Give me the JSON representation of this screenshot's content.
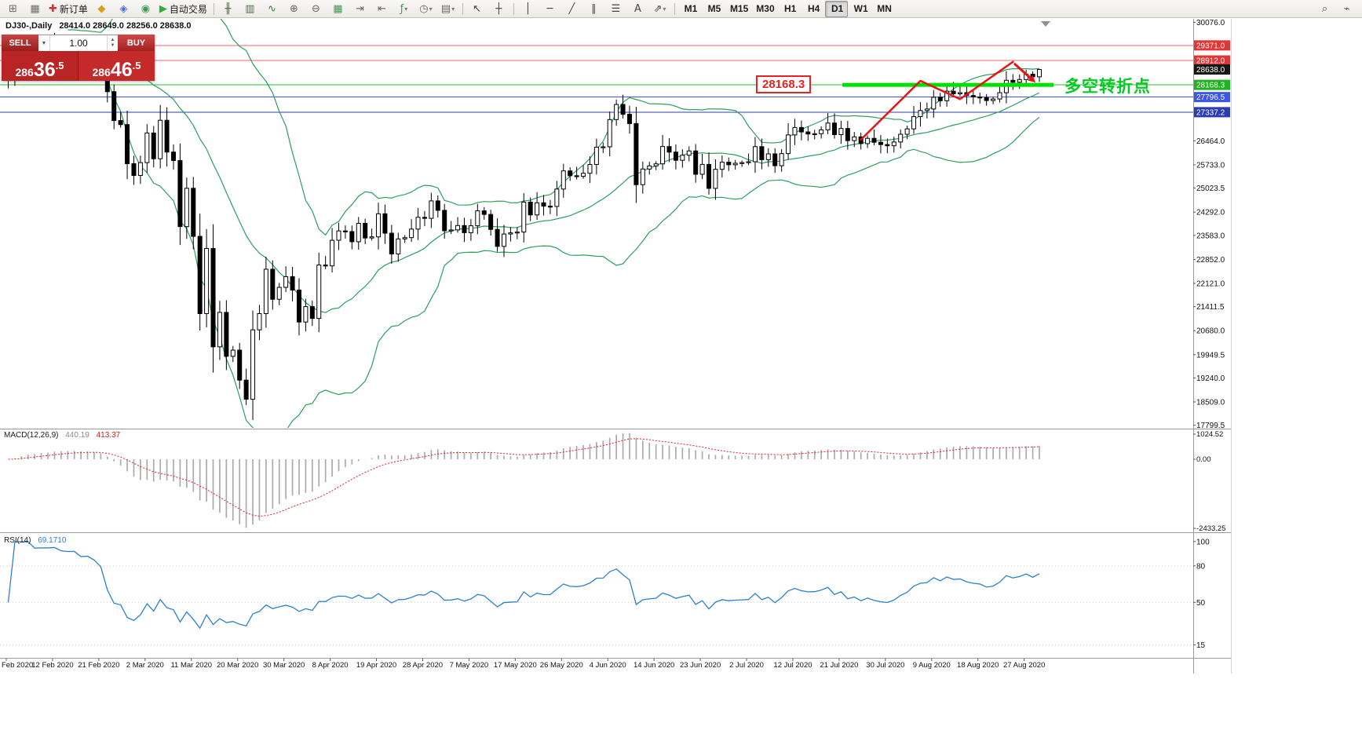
{
  "symbol_header": {
    "symbol": "DJ30-,Daily",
    "ohlc": "28414.0 28649.0 28256.0 28638.0"
  },
  "trade_panel": {
    "sell_label": "SELL",
    "buy_label": "BUY",
    "volume": "1.00",
    "sell_price": "28636.5",
    "buy_price": "28646.5",
    "dropdown_glyph": "▼",
    "spinner_up": "▲",
    "spinner_down": "▼"
  },
  "toolbar": {
    "items": [
      {
        "t": "btn",
        "name": "new-chart",
        "glyph": "⊞",
        "c": "#6b6b6b"
      },
      {
        "t": "btn",
        "name": "profiles",
        "glyph": "▦",
        "c": "#6b6b6b"
      },
      {
        "t": "btn",
        "name": "new-order",
        "glyph": "✚",
        "c": "#cc3333",
        "label": "新订单"
      },
      {
        "t": "btn",
        "name": "market-watch",
        "glyph": "◆",
        "c": "#d8a018"
      },
      {
        "t": "btn",
        "name": "data-window",
        "glyph": "◈",
        "c": "#4a6fd4"
      },
      {
        "t": "btn",
        "name": "navigator",
        "glyph": "◉",
        "c": "#3a9e4a"
      },
      {
        "t": "btn",
        "name": "auto-trading",
        "glyph": "▶",
        "c": "#2fae2f",
        "label": "自动交易"
      },
      {
        "t": "sep"
      },
      {
        "t": "btn",
        "name": "chart-bars",
        "glyph": "╫",
        "c": "#2f7e2f"
      },
      {
        "t": "btn",
        "name": "chart-candlesticks",
        "glyph": "▥",
        "c": "#2f7e2f"
      },
      {
        "t": "btn",
        "name": "chart-line",
        "glyph": "∿",
        "c": "#2f7e2f"
      },
      {
        "t": "btn",
        "name": "zoom-in",
        "glyph": "⊕",
        "c": "#666666"
      },
      {
        "t": "btn",
        "name": "zoom-out",
        "glyph": "⊖",
        "c": "#666666"
      },
      {
        "t": "btn",
        "name": "tile-windows",
        "glyph": "▦",
        "c": "#3a9e4a"
      },
      {
        "t": "btn",
        "name": "auto-scroll",
        "glyph": "⇥",
        "c": "#666666"
      },
      {
        "t": "btn",
        "name": "chart-shift",
        "glyph": "⇤",
        "c": "#666666"
      },
      {
        "t": "btn",
        "name": "indicators-list",
        "glyph": "ƒ",
        "c": "#2fae2f",
        "dd": true
      },
      {
        "t": "btn",
        "name": "periods-menu",
        "glyph": "◷",
        "c": "#666666",
        "dd": true
      },
      {
        "t": "btn",
        "name": "templates-menu",
        "glyph": "▤",
        "c": "#666666",
        "dd": true
      },
      {
        "t": "sep"
      },
      {
        "t": "btn",
        "name": "cursor-tool",
        "glyph": "↖",
        "c": "#444444"
      },
      {
        "t": "btn",
        "name": "crosshair-tool",
        "glyph": "┼",
        "c": "#444444"
      },
      {
        "t": "sep"
      },
      {
        "t": "btn",
        "name": "vertical-line-tool",
        "glyph": "│",
        "c": "#444444"
      },
      {
        "t": "btn",
        "name": "horizontal-line-tool",
        "glyph": "─",
        "c": "#444444"
      },
      {
        "t": "btn",
        "name": "trendline-tool",
        "glyph": "╱",
        "c": "#444444"
      },
      {
        "t": "btn",
        "name": "channel-tool",
        "glyph": "∥",
        "c": "#444444"
      },
      {
        "t": "btn",
        "name": "fibonacci-tool",
        "glyph": "☰",
        "c": "#444444"
      },
      {
        "t": "btn",
        "name": "text-tool",
        "glyph": "A",
        "c": "#444444"
      },
      {
        "t": "btn",
        "name": "arrows-tool",
        "glyph": "⇗",
        "c": "#444444",
        "dd": true
      },
      {
        "t": "sep"
      },
      {
        "t": "tf",
        "name": "tf-m1",
        "label": "M1"
      },
      {
        "t": "tf",
        "name": "tf-m5",
        "label": "M5"
      },
      {
        "t": "tf",
        "name": "tf-m15",
        "label": "M15"
      },
      {
        "t": "tf",
        "name": "tf-m30",
        "label": "M30"
      },
      {
        "t": "tf",
        "name": "tf-h1",
        "label": "H1"
      },
      {
        "t": "tf",
        "name": "tf-h4",
        "label": "H4"
      },
      {
        "t": "tf",
        "name": "tf-d1",
        "label": "D1",
        "active": true
      },
      {
        "t": "tf",
        "name": "tf-w1",
        "label": "W1"
      },
      {
        "t": "tf",
        "name": "tf-mn",
        "label": "MN"
      }
    ],
    "right_items": [
      {
        "name": "search",
        "glyph": "⌕",
        "c": "#555555"
      },
      {
        "name": "connection",
        "glyph": "⌁",
        "c": "#555555"
      }
    ]
  },
  "chart_data": {
    "type": "candlestick",
    "title": "DJ30-,Daily",
    "timeframe": "Daily",
    "ohlc_display": {
      "open": 28414.0,
      "high": 28649.0,
      "low": 28256.0,
      "close": 28638.0
    },
    "price_range": {
      "min": 17720,
      "max": 30180
    },
    "y_axis_ticks": [
      30076.0,
      26464.0,
      25733.0,
      25023.5,
      24292.0,
      23583.0,
      22852.0,
      22121.0,
      21411.5,
      20680.0,
      19949.5,
      19240.0,
      18509.0,
      17799.5
    ],
    "x_tick_step": 7,
    "x_tick_labels": [
      "Feb 2020",
      "12 Feb 2020",
      "21 Feb 2020",
      "2 Mar 2020",
      "11 Mar 2020",
      "20 Mar 2020",
      "30 Mar 2020",
      "8 Apr 2020",
      "19 Apr 2020",
      "28 Apr 2020",
      "7 May 2020",
      "17 May 2020",
      "26 May 2020",
      "4 Jun 2020",
      "14 Jun 2020",
      "23 Jun 2020",
      "2 Jul 2020",
      "12 Jul 2020",
      "21 Jul 2020",
      "30 Jul 2020",
      "9 Aug 2020",
      "18 Aug 2020",
      "27 Aug 2020"
    ],
    "closes": [
      28400,
      28808,
      29291,
      29380,
      29103,
      29277,
      29276,
      29551,
      29423,
      29398,
      29410,
      29232,
      29348,
      29220,
      28992,
      27961,
      27081,
      26958,
      25767,
      25409,
      25800,
      26703,
      25917,
      27090,
      26121,
      25865,
      23851,
      25018,
      23553,
      21200,
      23185,
      20188,
      21237,
      19899,
      20087,
      19174,
      18592,
      20705,
      21200,
      22552,
      21637,
      22000,
      22327,
      21917,
      20944,
      21413,
      21053,
      22680,
      22654,
      23434,
      23719,
      23700,
      23390,
      23949,
      23504,
      23538,
      24242,
      23650,
      23018,
      23476,
      23515,
      23775,
      24134,
      24102,
      24634,
      24346,
      23724,
      23749,
      23883,
      23665,
      23876,
      24331,
      24222,
      23765,
      23248,
      23625,
      23660,
      23685,
      24597,
      24206,
      24576,
      24474,
      24465,
      24995,
      25548,
      25401,
      25383,
      25475,
      25743,
      26270,
      26282,
      27111,
      27572,
      27272,
      26990,
      25128,
      25605,
      25700,
      25763,
      26290,
      26120,
      25871,
      26025,
      26156,
      25445,
      25746,
      25016,
      25596,
      25813,
      25735,
      25780,
      25800,
      25827,
      26287,
      25890,
      26067,
      25706,
      26075,
      26643,
      26870,
      26735,
      26672,
      26681,
      26800,
      27005,
      26652,
      26840,
      26470,
      26584,
      26379,
      26540,
      26420,
      26350,
      26313,
      26428,
      26664,
      26828,
      27201,
      27386,
      27433,
      27791,
      27686,
      27976,
      27896,
      27931,
      27844,
      27800,
      27778,
      27692,
      27739,
      27930,
      28308,
      28248,
      28331,
      28492,
      28414,
      28638
    ],
    "indicators": {
      "bollinger": {
        "period": 20,
        "deviation": 2,
        "color": "#2e9e5b"
      },
      "macd": {
        "label": "MACD(12,26,9)",
        "value_main": "440.19",
        "value_signal": "413.37",
        "axis": [
          "1024.52",
          "0.00",
          "-2433.25"
        ],
        "histogram_color": "#ababab",
        "signal_color": "#e02020"
      },
      "rsi": {
        "label": "RSI(14)",
        "value": "69.1710",
        "axis": [
          100,
          80,
          50,
          15
        ],
        "line_color": "#2f7fd0"
      }
    },
    "levels": [
      {
        "price": 29371.0,
        "color": "#e03636",
        "line_color": "#f06a6a"
      },
      {
        "price": 28912.0,
        "color": "#e03636",
        "line_color": "#f06a6a"
      },
      {
        "price": 28638.0,
        "color": "#151515",
        "no_line": true,
        "current": true
      },
      {
        "price": 28168.3,
        "color": "#1fb31f",
        "line_color": "#27c027"
      },
      {
        "price": 27796.5,
        "color": "#3d55e8",
        "line_color": "#3d55e8"
      },
      {
        "price": 27337.2,
        "color": "#2b3cae",
        "line_color": "#2b3cae"
      }
    ],
    "annotations": {
      "support_label": {
        "text": "28168.3",
        "color": "#e62222"
      },
      "turning_point_text": {
        "text": "多空转折点",
        "color": "#00cc22"
      },
      "thick_support_line": {
        "price": 28168.3,
        "x_start_frac": 0.706,
        "x_end_frac": 0.883,
        "color": "#00e000"
      },
      "trend_color": "#e81212",
      "trend_path": [
        [
          129,
          26500
        ],
        [
          138,
          28290
        ],
        [
          144,
          27735
        ],
        [
          152,
          28870
        ]
      ],
      "pullback_arrow": [
        [
          152.3,
          28800
        ],
        [
          154.8,
          28350
        ]
      ]
    }
  }
}
